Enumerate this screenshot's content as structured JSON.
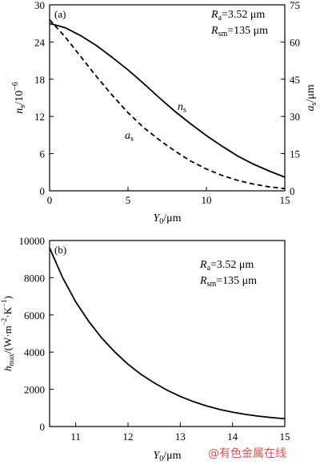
{
  "chart_data": [
    {
      "panel_label": "(a)",
      "type": "line",
      "x_label": "Y",
      "x_label_sub": "0",
      "x_label_unit": "/μm",
      "xlim": [
        0,
        15
      ],
      "x_ticks": [
        "0",
        "5",
        "10",
        "15"
      ],
      "y_left_label": "n",
      "y_left_label_sub": "s",
      "y_left_label_unit": "/10",
      "y_left_label_exp": "−6",
      "y_left_lim": [
        0,
        30
      ],
      "y_left_ticks": [
        "0",
        "6",
        "12",
        "18",
        "24",
        "30"
      ],
      "y_right_label": "a",
      "y_right_label_sub": "s",
      "y_right_label_unit": "/μm",
      "y_right_lim": [
        0,
        75
      ],
      "y_right_ticks": [
        "0",
        "15",
        "30",
        "45",
        "60",
        "75"
      ],
      "annotation": {
        "line1": {
          "sym": "R",
          "sub": "a",
          "rest": "=3.52 μm"
        },
        "line2": {
          "sym": "R",
          "sub": "sm",
          "rest": "=135 μm"
        }
      },
      "series": [
        {
          "name": "n",
          "name_sub": "s",
          "axis": "left",
          "style": "solid",
          "x": [
            0,
            1,
            2,
            3,
            4,
            5,
            6,
            7,
            8,
            9,
            10,
            11,
            12,
            13,
            14,
            15
          ],
          "y": [
            27.0,
            26.3,
            25.0,
            23.4,
            21.5,
            19.5,
            17.3,
            15.0,
            12.8,
            10.8,
            8.9,
            7.2,
            5.6,
            4.3,
            3.2,
            2.2
          ]
        },
        {
          "name": "a",
          "name_sub": "s",
          "axis": "right",
          "style": "dashed",
          "x": [
            0,
            1,
            2,
            3,
            4,
            5,
            6,
            7,
            8,
            9,
            10,
            11,
            12,
            13,
            14,
            15
          ],
          "y": [
            69.0,
            62.0,
            54.0,
            46.0,
            38.5,
            31.5,
            25.5,
            20.5,
            16.0,
            12.0,
            8.8,
            6.2,
            4.2,
            2.7,
            1.6,
            0.9
          ]
        }
      ]
    },
    {
      "panel_label": "(b)",
      "type": "line",
      "x_label": "Y",
      "x_label_sub": "0",
      "x_label_unit": "/μm",
      "xlim": [
        10.5,
        15
      ],
      "x_ticks": [
        "11",
        "12",
        "13",
        "14",
        "15"
      ],
      "y_label": "h",
      "y_label_sub": "max",
      "y_label_unit": "/(W·m",
      "y_label_exp1": "−2",
      "y_label_mid": "·K",
      "y_label_exp2": "−1",
      "y_label_end": ")",
      "ylim": [
        0,
        10000
      ],
      "y_ticks": [
        "0",
        "2000",
        "4000",
        "6000",
        "8000",
        "10000"
      ],
      "annotation": {
        "line1": {
          "sym": "R",
          "sub": "a",
          "rest": "=3.52 μm"
        },
        "line2": {
          "sym": "R",
          "sub": "sm",
          "rest": "=135 μm"
        }
      },
      "series": [
        {
          "style": "solid",
          "x": [
            10.5,
            10.75,
            11.0,
            11.25,
            11.5,
            11.75,
            12.0,
            12.25,
            12.5,
            12.75,
            13.0,
            13.25,
            13.5,
            13.75,
            14.0,
            14.25,
            14.5,
            14.75,
            15.0
          ],
          "y": [
            9600,
            8000,
            6700,
            5650,
            4750,
            4000,
            3350,
            2800,
            2350,
            1950,
            1620,
            1340,
            1110,
            920,
            770,
            650,
            555,
            480,
            420
          ]
        }
      ]
    }
  ],
  "watermark": "@有色金属在线"
}
